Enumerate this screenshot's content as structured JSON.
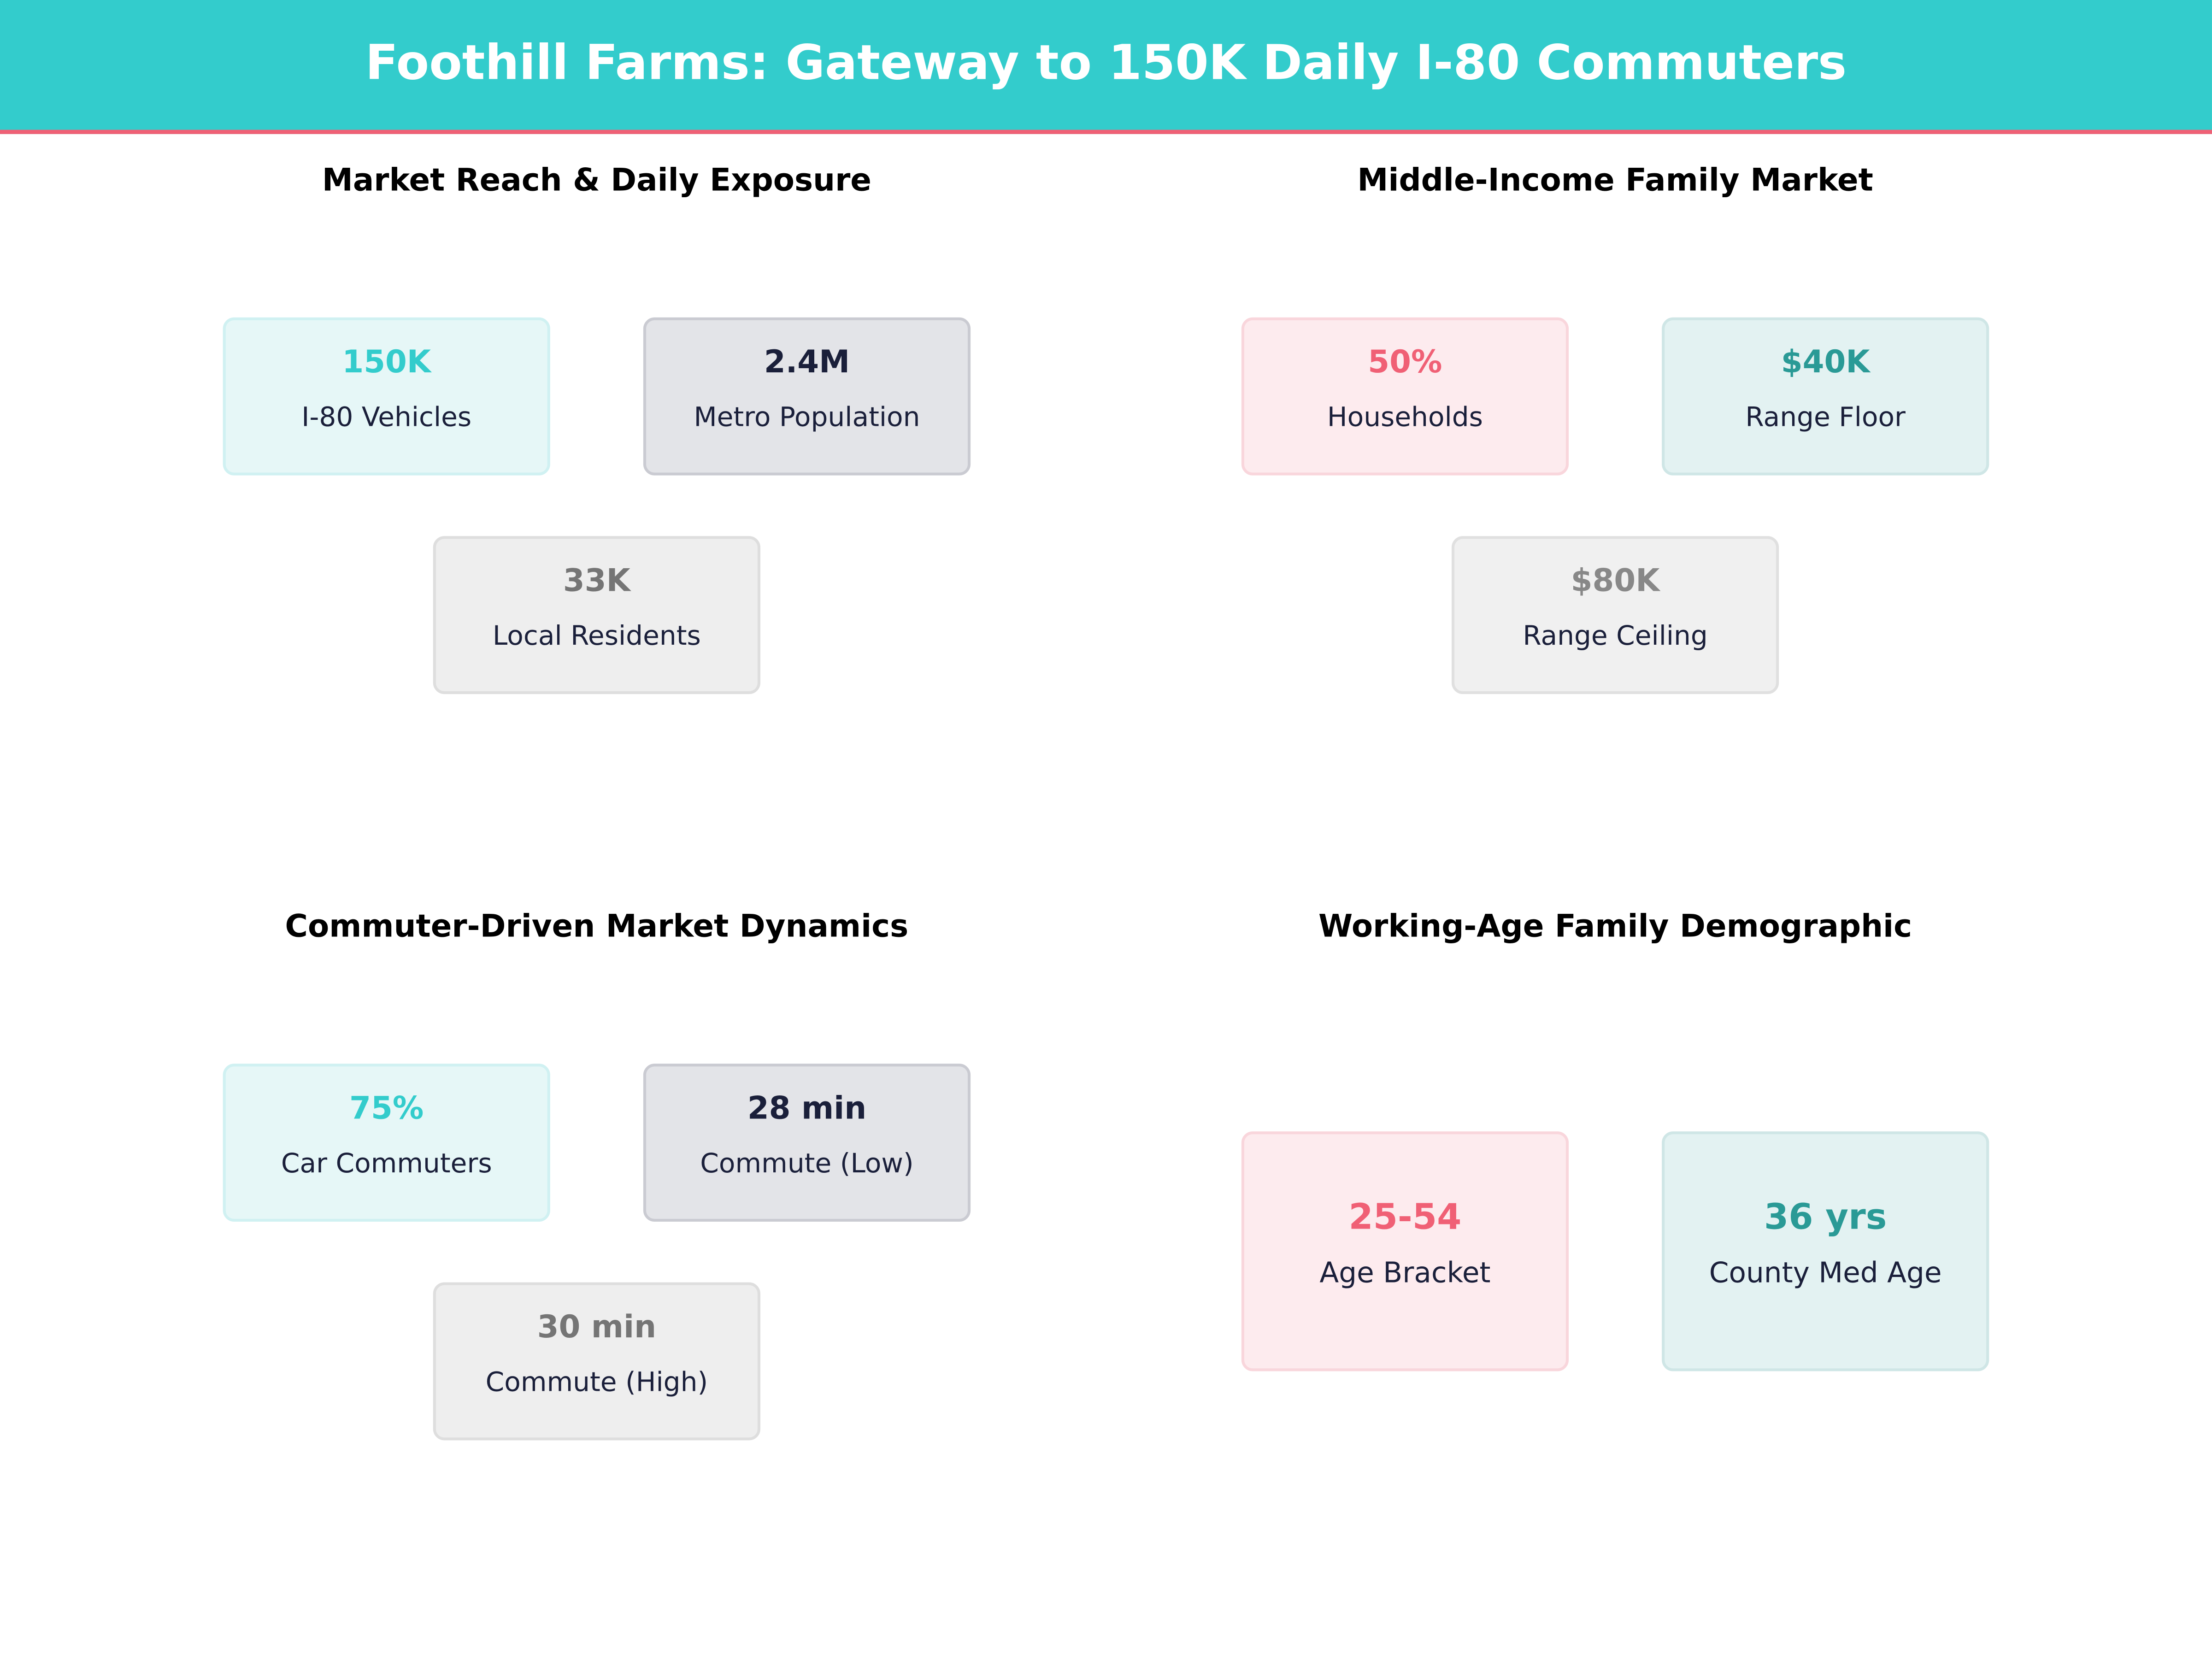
{
  "header": {
    "title": "Foothill Farms: Gateway to 150K Daily I-80 Commuters"
  },
  "colors": {
    "header_bg": "#33cccc",
    "accent_line": "#f06075",
    "teal": "#33cccc",
    "navy": "#1a1f3a",
    "pink": "#f06075",
    "dark_teal": "#2a9a96",
    "grey": "#757575"
  },
  "panels": [
    {
      "title": "Market Reach & Daily Exposure",
      "cards": [
        {
          "value": "150K",
          "label": "I-80 Vehicles"
        },
        {
          "value": "2.4M",
          "label": "Metro Population"
        },
        {
          "value": "33K",
          "label": "Local Residents"
        }
      ]
    },
    {
      "title": "Middle-Income Family Market",
      "cards": [
        {
          "value": "50%",
          "label": "Households"
        },
        {
          "value": "$40K",
          "label": "Range Floor"
        },
        {
          "value": "$80K",
          "label": "Range Ceiling"
        }
      ]
    },
    {
      "title": "Commuter-Driven Market Dynamics",
      "cards": [
        {
          "value": "75%",
          "label": "Car Commuters"
        },
        {
          "value": "28 min",
          "label": "Commute (Low)"
        },
        {
          "value": "30 min",
          "label": "Commute (High)"
        }
      ]
    },
    {
      "title": "Working-Age Family Demographic",
      "cards": [
        {
          "value": "25-54",
          "label": "Age Bracket"
        },
        {
          "value": "36 yrs",
          "label": "County Med Age"
        }
      ]
    }
  ]
}
